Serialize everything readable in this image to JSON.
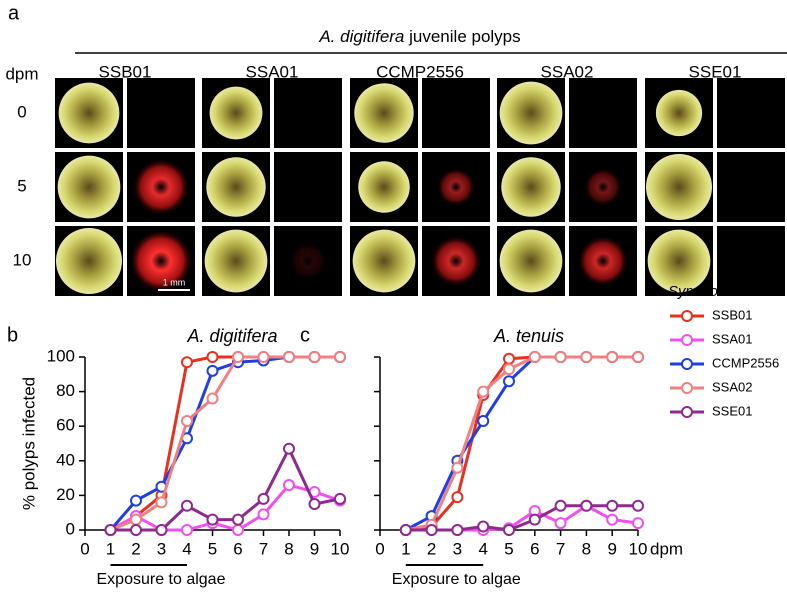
{
  "panel_a": {
    "label": "a",
    "title_species": "A. digitifera",
    "title_text": "juvenile polyps",
    "row_header": "dpm",
    "rows": [
      "0",
      "5",
      "10"
    ],
    "columns": [
      "SSB01",
      "SSA01",
      "CCMP2556",
      "SSA02",
      "SSE01"
    ],
    "scale_bar": "1 mm"
  },
  "chart_data": [
    {
      "type": "line",
      "panel_label": "b",
      "title": "A. digitifera",
      "y_label": "% polyps infected",
      "annotation": "Exposure to algae",
      "annotation_range": [
        1,
        4
      ],
      "x": [
        1,
        2,
        3,
        4,
        5,
        6,
        7,
        8,
        9,
        10
      ],
      "xlim": [
        0,
        10
      ],
      "xticks": [
        0,
        1,
        2,
        3,
        4,
        5,
        6,
        7,
        8,
        9,
        10
      ],
      "ylim": [
        0,
        100
      ],
      "yticks": [
        0,
        20,
        40,
        60,
        80,
        100
      ],
      "show_ytick_labels": true,
      "series": [
        {
          "name": "SSB01",
          "color": "#e8301f",
          "values": [
            0,
            8,
            20,
            97,
            100,
            100,
            100,
            100,
            100,
            100
          ]
        },
        {
          "name": "SSA01",
          "color": "#f050f0",
          "values": [
            0,
            8,
            0,
            0,
            4,
            0,
            9,
            26,
            22,
            17
          ]
        },
        {
          "name": "CCMP2556",
          "color": "#1f3fe0",
          "values": [
            0,
            17,
            25,
            53,
            92,
            97,
            98,
            100,
            100,
            100
          ]
        },
        {
          "name": "SSA02",
          "color": "#f08080",
          "values": [
            0,
            6,
            16,
            63,
            76,
            100,
            100,
            100,
            100,
            100
          ]
        },
        {
          "name": "SSE01",
          "color": "#8e2a8e",
          "values": [
            0,
            0,
            0,
            14,
            6,
            6,
            18,
            47,
            15,
            18
          ]
        }
      ]
    },
    {
      "type": "line",
      "panel_label": "c",
      "title": "A. tenuis",
      "x_label": "dpm",
      "annotation": "Exposure to algae",
      "annotation_range": [
        1,
        4
      ],
      "legend_title": "Symbiodinium",
      "x": [
        1,
        2,
        3,
        4,
        5,
        6,
        7,
        8,
        9,
        10
      ],
      "xlim": [
        0,
        10
      ],
      "xticks": [
        0,
        1,
        2,
        3,
        4,
        5,
        6,
        7,
        8,
        9,
        10
      ],
      "ylim": [
        0,
        100
      ],
      "yticks": [
        0,
        20,
        40,
        60,
        80,
        100
      ],
      "show_ytick_labels": false,
      "series": [
        {
          "name": "SSB01",
          "color": "#e8301f",
          "values": [
            0,
            2,
            19,
            78,
            99,
            100,
            100,
            100,
            100,
            100
          ]
        },
        {
          "name": "SSA01",
          "color": "#f050f0",
          "values": [
            0,
            0,
            0,
            0,
            1,
            11,
            4,
            14,
            6,
            4
          ]
        },
        {
          "name": "CCMP2556",
          "color": "#1f3fe0",
          "values": [
            0,
            8,
            40,
            63,
            86,
            100,
            100,
            100,
            100,
            100
          ]
        },
        {
          "name": "SSA02",
          "color": "#f08080",
          "values": [
            0,
            3,
            36,
            80,
            93,
            100,
            100,
            100,
            100,
            100
          ]
        },
        {
          "name": "SSE01",
          "color": "#8e2a8e",
          "values": [
            0,
            0,
            0,
            2,
            0,
            6,
            14,
            14,
            14,
            14
          ]
        }
      ]
    }
  ]
}
